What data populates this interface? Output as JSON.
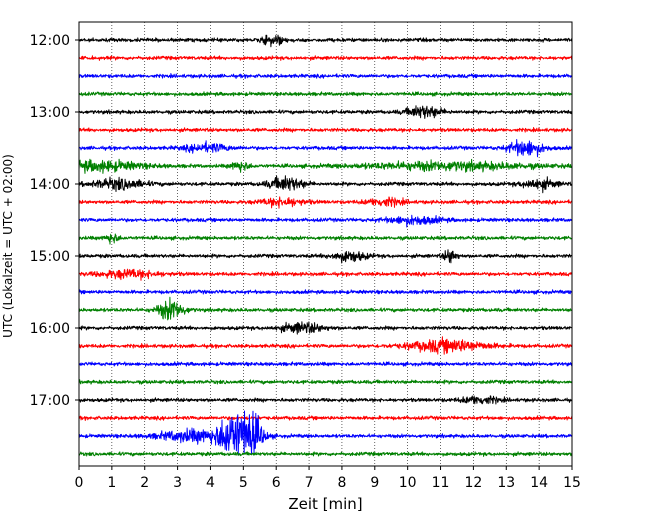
{
  "chart_data": {
    "type": "line",
    "subtype": "helicorder",
    "xlabel": "Zeit  [min]",
    "ylabel": "UTC (Lokalzeit = UTC + 02:00)",
    "xlim": [
      0,
      15
    ],
    "x_ticks": [
      "0",
      "1",
      "2",
      "3",
      "4",
      "5",
      "6",
      "7",
      "8",
      "9",
      "10",
      "11",
      "12",
      "13",
      "14",
      "15"
    ],
    "y_ticks": [
      "12:00",
      "13:00",
      "14:00",
      "15:00",
      "16:00",
      "17:00"
    ],
    "grid": "vertical dotted at each minute",
    "trace_interval_min": 15,
    "start_time": "12:00",
    "color_cycle": [
      "#000000",
      "#ff0000",
      "#0000ff",
      "#008000"
    ],
    "traces": [
      {
        "start": "12:00",
        "events": [
          {
            "t": 5.9,
            "amp": 0.5,
            "dur": 0.5
          }
        ]
      },
      {
        "start": "12:15",
        "events": []
      },
      {
        "start": "12:30",
        "events": []
      },
      {
        "start": "12:45",
        "events": []
      },
      {
        "start": "13:00",
        "events": [
          {
            "t": 10.5,
            "amp": 0.6,
            "dur": 0.8
          }
        ]
      },
      {
        "start": "13:15",
        "events": []
      },
      {
        "start": "13:30",
        "events": [
          {
            "t": 3.9,
            "amp": 0.4,
            "dur": 1.0
          },
          {
            "t": 13.6,
            "amp": 0.8,
            "dur": 0.8
          }
        ]
      },
      {
        "start": "13:45",
        "events": [
          {
            "t": 0.6,
            "amp": 0.5,
            "dur": 2.0
          },
          {
            "t": 4.9,
            "amp": 0.5,
            "dur": 0.4
          },
          {
            "t": 11.2,
            "amp": 0.4,
            "dur": 3.8
          }
        ]
      },
      {
        "start": "14:00",
        "events": [
          {
            "t": 1.2,
            "amp": 0.5,
            "dur": 1.2
          },
          {
            "t": 6.3,
            "amp": 0.7,
            "dur": 0.8
          },
          {
            "t": 14.0,
            "amp": 0.5,
            "dur": 0.8
          }
        ]
      },
      {
        "start": "14:15",
        "events": [
          {
            "t": 6.2,
            "amp": 0.4,
            "dur": 1.0
          },
          {
            "t": 9.3,
            "amp": 0.4,
            "dur": 0.8
          }
        ]
      },
      {
        "start": "14:30",
        "events": [
          {
            "t": 10.2,
            "amp": 0.4,
            "dur": 1.2
          }
        ]
      },
      {
        "start": "14:45",
        "events": [
          {
            "t": 1.0,
            "amp": 0.5,
            "dur": 0.3
          }
        ]
      },
      {
        "start": "15:00",
        "events": [
          {
            "t": 8.2,
            "amp": 0.5,
            "dur": 0.8
          },
          {
            "t": 11.3,
            "amp": 0.7,
            "dur": 0.3
          }
        ]
      },
      {
        "start": "15:15",
        "events": [
          {
            "t": 1.5,
            "amp": 0.4,
            "dur": 1.4
          }
        ]
      },
      {
        "start": "15:30",
        "events": []
      },
      {
        "start": "15:45",
        "events": [
          {
            "t": 2.8,
            "amp": 1.0,
            "dur": 0.6
          }
        ]
      },
      {
        "start": "16:00",
        "events": [
          {
            "t": 6.8,
            "amp": 0.5,
            "dur": 1.0
          }
        ]
      },
      {
        "start": "16:15",
        "events": [
          {
            "t": 11.2,
            "amp": 0.6,
            "dur": 1.8
          }
        ]
      },
      {
        "start": "16:30",
        "events": []
      },
      {
        "start": "16:45",
        "events": []
      },
      {
        "start": "17:00",
        "events": [
          {
            "t": 12.2,
            "amp": 0.4,
            "dur": 0.8
          }
        ]
      },
      {
        "start": "17:15",
        "events": []
      },
      {
        "start": "17:30",
        "events": [
          {
            "t": 3.5,
            "amp": 0.6,
            "dur": 1.6
          },
          {
            "t": 4.6,
            "amp": 2.0,
            "dur": 0.6
          },
          {
            "t": 5.2,
            "amp": 2.2,
            "dur": 0.6
          }
        ]
      },
      {
        "start": "17:45",
        "events": []
      }
    ]
  }
}
